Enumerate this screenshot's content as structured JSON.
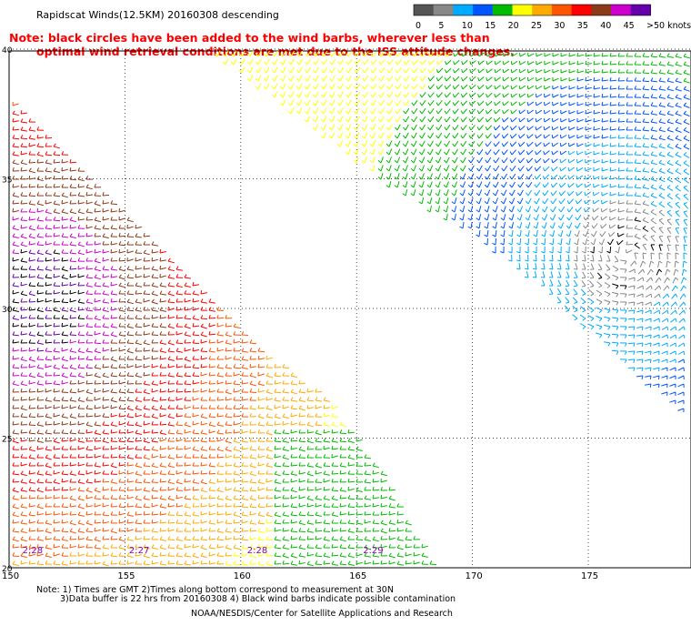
{
  "title": "Rapidscat Winds(12.5KM) 20160308 descending",
  "note_line1": "Note: black circles have been added to the wind barbs, wherever less than",
  "note_line2": "optimal wind retrieval conditions are met due to the ISS attitude changes.",
  "legend": {
    "ticks": [
      "0",
      "5",
      "10",
      "15",
      "20",
      "25",
      "30",
      "35",
      "40",
      "45",
      ">50 knots"
    ],
    "colors": [
      "#555555",
      "#888888",
      "#00aaff",
      "#0055ff",
      "#00bb00",
      "#ffff00",
      "#ffaa00",
      "#ff5500",
      "#ff0000",
      "#8b3a1a",
      "#cc00cc",
      "#6600aa"
    ]
  },
  "axes": {
    "lon_ticks": [
      "150",
      "155",
      "160",
      "165",
      "170",
      "175"
    ],
    "lat_ticks": [
      "20",
      "25",
      "30",
      "35",
      "40"
    ],
    "lon_range": [
      150,
      179.5
    ],
    "lat_range": [
      20,
      40.3
    ]
  },
  "pass_times": [
    {
      "label": "2:28",
      "lon": 150.3,
      "lat": 20.5
    },
    {
      "label": "2:27",
      "lon": 154.9,
      "lat": 20.5
    },
    {
      "label": "2:28",
      "lon": 160.0,
      "lat": 20.5
    },
    {
      "label": "2:29",
      "lon": 165.0,
      "lat": 20.5
    }
  ],
  "footer_line1": "Note: 1) Times are GMT 2)Times along bottom correspond to measurement at 30N",
  "footer_line2": "3)Data buffer is 22 hrs from 20160308 4) Black wind barbs indicate possible contamination",
  "footer_line3": "NOAA/NESDIS/Center for Satellite Applications and Research"
}
